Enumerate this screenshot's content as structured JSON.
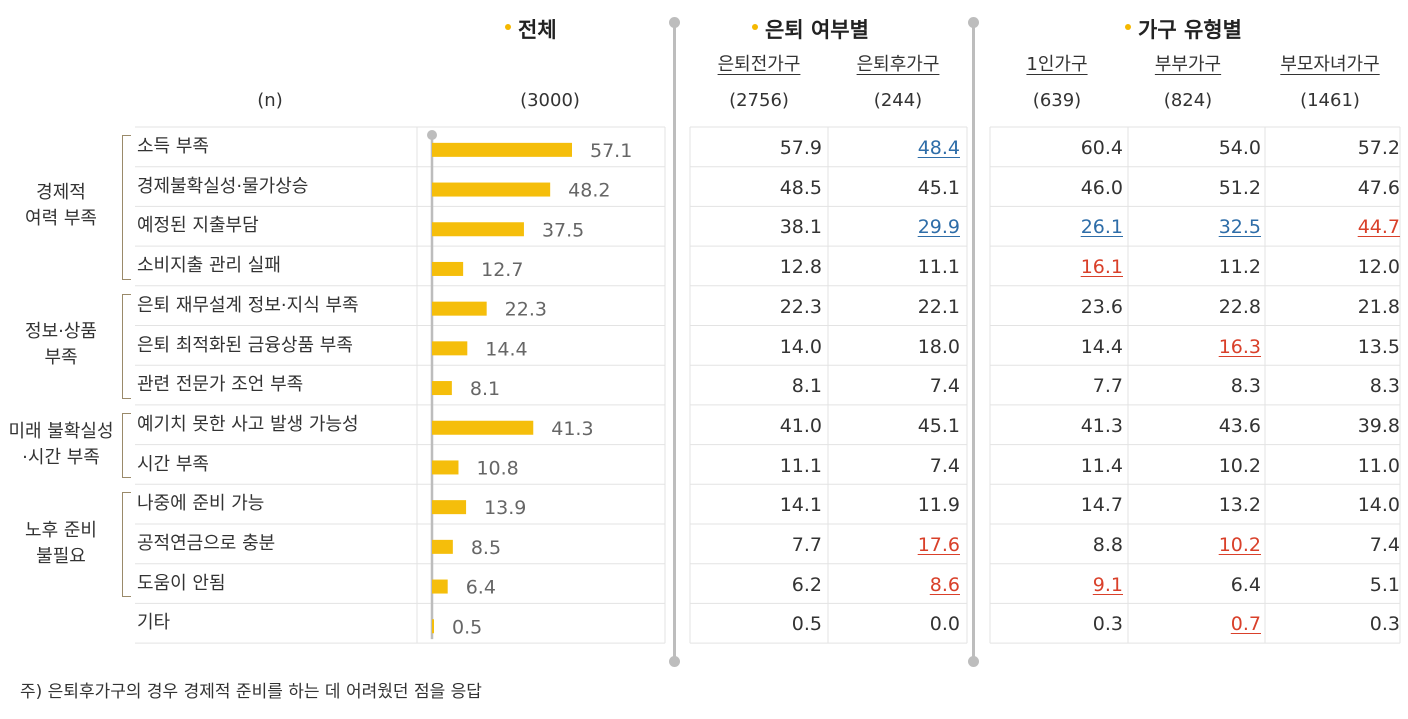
{
  "headers": {
    "overall": "전체",
    "retire": "은퇴 여부별",
    "household": "가구 유형별",
    "n_label": "(n)"
  },
  "columns": [
    {
      "key": "overall",
      "label": "",
      "n": "(3000)"
    },
    {
      "key": "pre",
      "label": "은퇴전가구",
      "n": "(2756)"
    },
    {
      "key": "post",
      "label": "은퇴후가구",
      "n": "(244)"
    },
    {
      "key": "single",
      "label": "1인가구",
      "n": "(639)"
    },
    {
      "key": "couple",
      "label": "부부가구",
      "n": "(824)"
    },
    {
      "key": "family",
      "label": "부모자녀가구",
      "n": "(1461)"
    }
  ],
  "groups": [
    {
      "label": "경제적\n여력 부족",
      "rows": [
        0,
        3
      ]
    },
    {
      "label": "정보·상품\n부족",
      "rows": [
        4,
        6
      ]
    },
    {
      "label": "미래 불확실성\n·시간 부족",
      "rows": [
        7,
        8
      ]
    },
    {
      "label": "노후 준비\n불필요",
      "rows": [
        9,
        11
      ]
    }
  ],
  "chart_data": {
    "type": "bar",
    "orientation": "horizontal",
    "categories": [
      "소득 부족",
      "경제불확실성·물가상승",
      "예정된 지출부담",
      "소비지출 관리 실패",
      "은퇴 재무설계 정보·지식 부족",
      "은퇴 최적화된 금융상품 부족",
      "관련 전문가 조언 부족",
      "예기치 못한 사고 발생 가능성",
      "시간 부족",
      "나중에 준비 가능",
      "공적연금으로 충분",
      "도움이 안됨",
      "기타"
    ],
    "values": [
      57.1,
      48.2,
      37.5,
      12.7,
      22.3,
      14.4,
      8.1,
      41.3,
      10.8,
      13.9,
      8.5,
      6.4,
      0.5
    ],
    "values_text": [
      "57.1",
      "48.2",
      "37.5",
      "12.7",
      "22.3",
      "14.4",
      "8.1",
      "41.3",
      "10.8",
      "13.9",
      "8.5",
      "6.4",
      "0.5"
    ],
    "bar_color": "#F5BE0B",
    "xlim": [
      0,
      70
    ]
  },
  "table": {
    "pre": [
      "57.9",
      "48.5",
      "38.1",
      "12.8",
      "22.3",
      "14.0",
      "8.1",
      "41.0",
      "11.1",
      "14.1",
      "7.7",
      "6.2",
      "0.5"
    ],
    "post": [
      "48.4",
      "45.1",
      "29.9",
      "11.1",
      "22.1",
      "18.0",
      "7.4",
      "45.1",
      "7.4",
      "11.9",
      "17.6",
      "8.6",
      "0.0"
    ],
    "single": [
      "60.4",
      "46.0",
      "26.1",
      "16.1",
      "23.6",
      "14.4",
      "7.7",
      "41.3",
      "11.4",
      "14.7",
      "8.8",
      "9.1",
      "0.3"
    ],
    "couple": [
      "54.0",
      "51.2",
      "32.5",
      "11.2",
      "22.8",
      "16.3",
      "8.3",
      "43.6",
      "10.2",
      "13.2",
      "10.2",
      "6.4",
      "0.7"
    ],
    "family": [
      "57.2",
      "47.6",
      "44.7",
      "12.0",
      "21.8",
      "13.5",
      "8.3",
      "39.8",
      "11.0",
      "14.0",
      "7.4",
      "5.1",
      "0.3"
    ]
  },
  "highlights": {
    "post": {
      "0": "blue",
      "2": "blue",
      "10": "red",
      "11": "red"
    },
    "single": {
      "2": "blue",
      "3": "red",
      "11": "red"
    },
    "couple": {
      "2": "blue",
      "5": "red",
      "10": "red",
      "12": "red"
    },
    "family": {
      "2": "red"
    }
  },
  "colors": {
    "blue": "#2E6DA8",
    "red": "#D9402A",
    "accent": "#F5B800",
    "grid": "#E3E3E3"
  },
  "note": "주) 은퇴후가구의 경우 경제적 준비를 하는 데 어려웠던 점을 응답"
}
